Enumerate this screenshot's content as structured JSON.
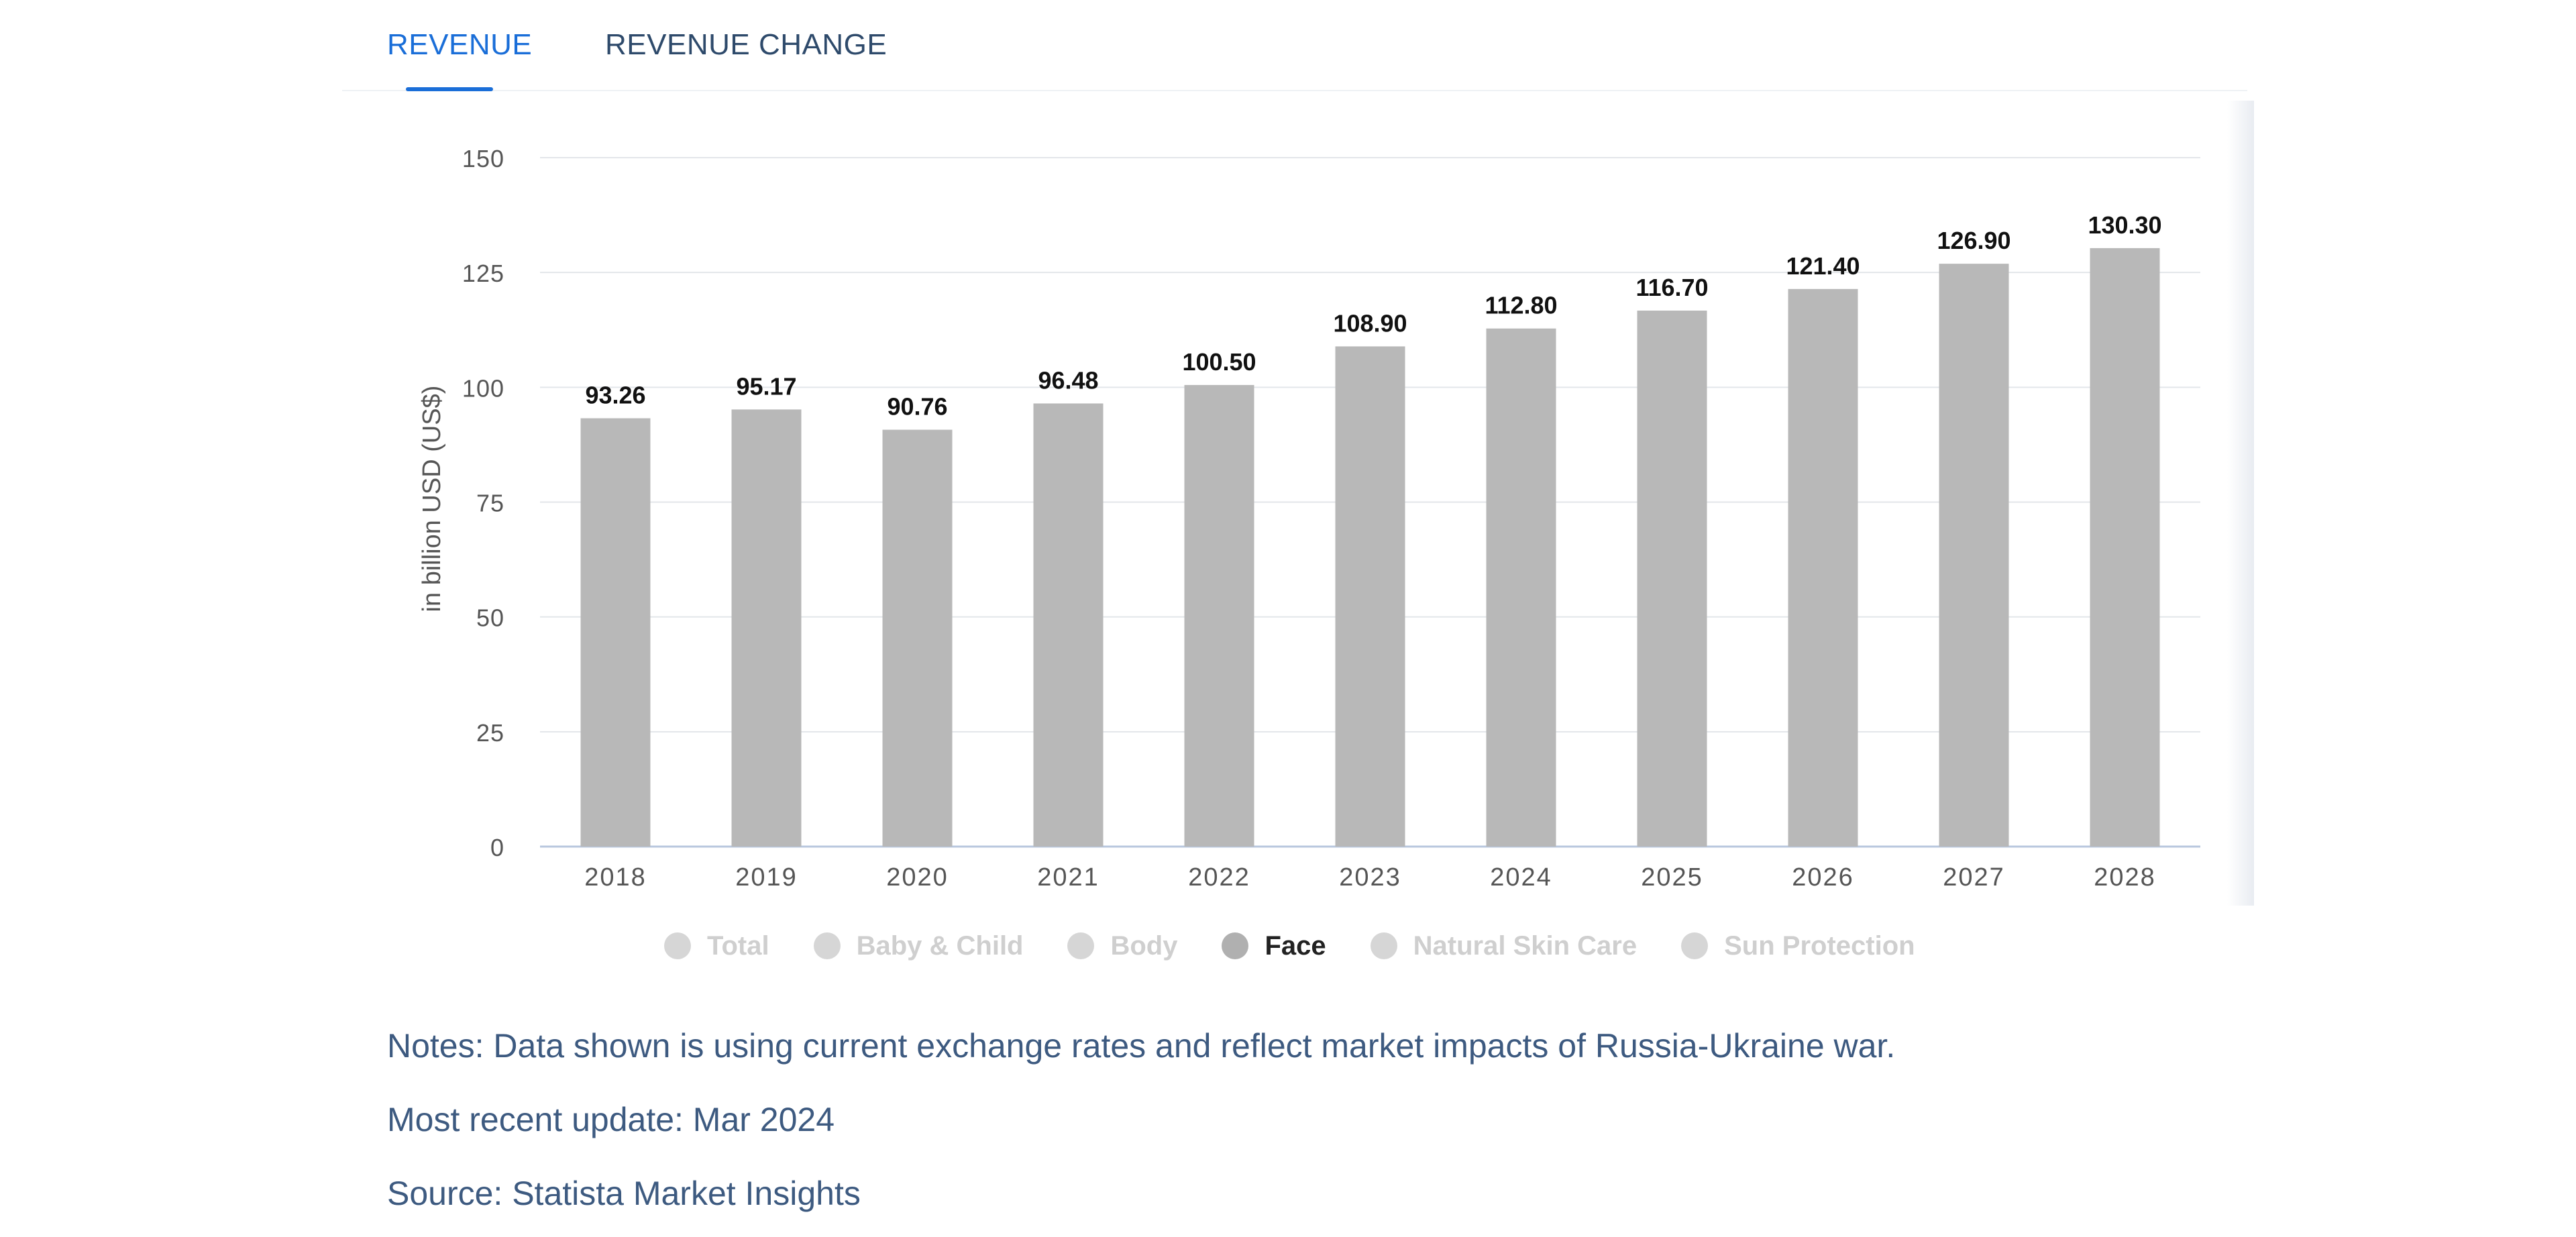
{
  "tabs": [
    {
      "label": "REVENUE",
      "active": true
    },
    {
      "label": "REVENUE CHANGE",
      "active": false
    }
  ],
  "chart_data": {
    "type": "bar",
    "categories": [
      "2018",
      "2019",
      "2020",
      "2021",
      "2022",
      "2023",
      "2024",
      "2025",
      "2026",
      "2027",
      "2028"
    ],
    "values": [
      93.26,
      95.17,
      90.76,
      96.48,
      100.5,
      108.9,
      112.8,
      116.7,
      121.4,
      126.9,
      130.3
    ],
    "value_labels": [
      "93.26",
      "95.17",
      "90.76",
      "96.48",
      "100.50",
      "108.90",
      "112.80",
      "116.70",
      "121.40",
      "126.90",
      "130.30"
    ],
    "ylabel": "in billion USD (US$)",
    "ylim": [
      0,
      150
    ],
    "yticks": [
      0,
      25,
      50,
      75,
      100,
      125,
      150
    ],
    "grid": true,
    "bar_color": "#b8b8b8",
    "legend_placement": "bottom"
  },
  "legend": [
    {
      "label": "Total",
      "active": false
    },
    {
      "label": "Baby & Child",
      "active": false
    },
    {
      "label": "Body",
      "active": false
    },
    {
      "label": "Face",
      "active": true
    },
    {
      "label": "Natural Skin Care",
      "active": false
    },
    {
      "label": "Sun Protection",
      "active": false
    }
  ],
  "notes": {
    "notes": "Notes: Data shown is using current exchange rates and reflect market impacts of Russia-Ukraine war.",
    "update": "Most recent update: Mar 2024",
    "source": "Source: Statista Market Insights"
  }
}
